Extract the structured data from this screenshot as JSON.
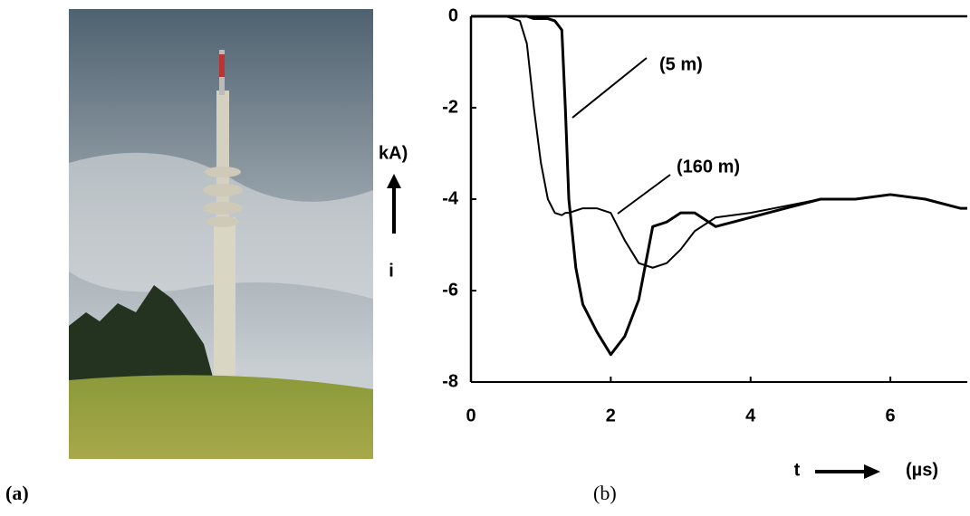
{
  "panel_labels": [
    "(a)",
    "(b)"
  ],
  "chart_data": {
    "type": "line",
    "y_unit": "kA)",
    "ylabel": "i",
    "xlabel": "t",
    "x_unit": "(µs)",
    "x": [
      0,
      0.5,
      0.7,
      0.8,
      0.9,
      1.0,
      1.1,
      1.2,
      1.3,
      1.35,
      1.4,
      1.5,
      1.6,
      1.8,
      2.0,
      2.2,
      2.4,
      2.6,
      2.8,
      3.0,
      3.2,
      3.5,
      4.0,
      4.5,
      5.0,
      5.5,
      6.0,
      6.5,
      7.0,
      7.1
    ],
    "series": [
      {
        "name": "(5 m)",
        "color": "#000000",
        "linewidth": 3,
        "values": [
          0,
          0,
          0,
          0,
          -0.05,
          -0.05,
          -0.05,
          -0.1,
          -0.3,
          -2,
          -4,
          -5.5,
          -6.3,
          -6.9,
          -7.4,
          -7.0,
          -6.2,
          -4.6,
          -4.5,
          -4.3,
          -4.3,
          -4.6,
          -4.4,
          -4.2,
          -4.0,
          -4.0,
          -3.9,
          -4.0,
          -4.2,
          -4.2
        ]
      },
      {
        "name": "(160 m)",
        "color": "#000000",
        "linewidth": 2,
        "values": [
          0,
          0,
          -0.1,
          -0.6,
          -2,
          -3.2,
          -4.0,
          -4.3,
          -4.35,
          -4.3,
          -4.3,
          -4.25,
          -4.2,
          -4.2,
          -4.3,
          -4.9,
          -5.4,
          -5.5,
          -5.4,
          -5.1,
          -4.7,
          -4.4,
          -4.3,
          -4.15,
          -4.0,
          -4.0,
          -3.9,
          -4.0,
          -4.2,
          -4.2
        ]
      }
    ],
    "xlim": [
      0,
      7.1
    ],
    "ylim": [
      -8,
      0
    ],
    "xticks": [
      0,
      2,
      4,
      6
    ],
    "yticks": [
      0,
      -2,
      -4,
      -6,
      -8
    ]
  }
}
